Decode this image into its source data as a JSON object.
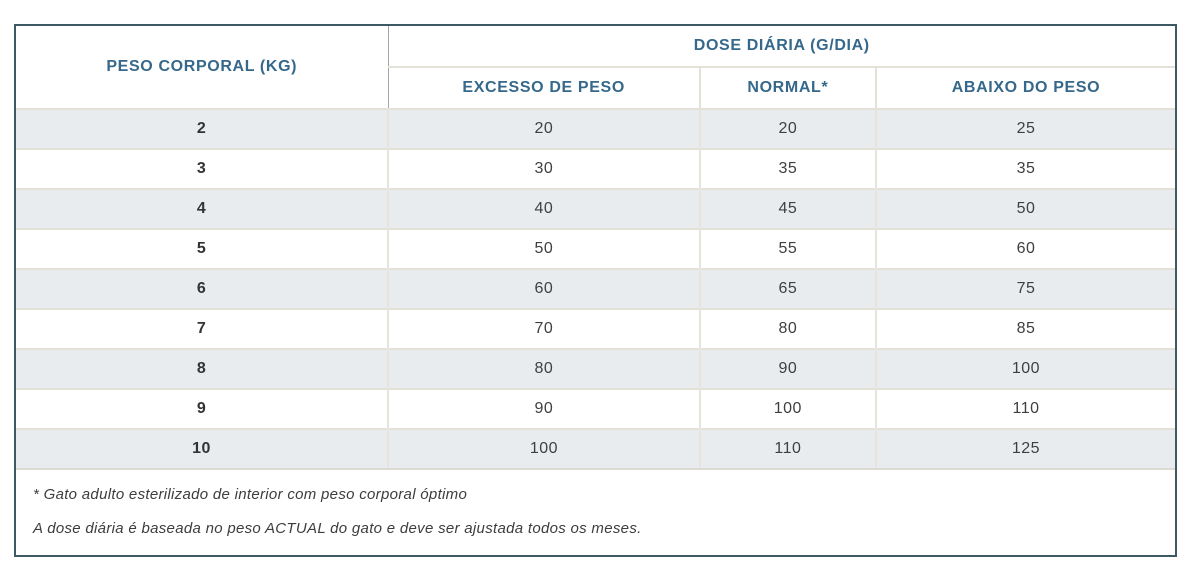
{
  "chart_data": {
    "type": "table",
    "header": {
      "row_header": "PESO CORPORAL (KG)",
      "group_header": "DOSE DIÁRIA (G/DIA)",
      "sub_headers": [
        "EXCESSO DE PESO",
        "NORMAL*",
        "ABAIXO DO PESO"
      ]
    },
    "rows": [
      [
        "2",
        "20",
        "20",
        "25"
      ],
      [
        "3",
        "30",
        "35",
        "35"
      ],
      [
        "4",
        "40",
        "45",
        "50"
      ],
      [
        "5",
        "50",
        "55",
        "60"
      ],
      [
        "6",
        "60",
        "65",
        "75"
      ],
      [
        "7",
        "70",
        "80",
        "85"
      ],
      [
        "8",
        "80",
        "90",
        "100"
      ],
      [
        "9",
        "90",
        "100",
        "110"
      ],
      [
        "10",
        "100",
        "110",
        "125"
      ]
    ],
    "footnotes": [
      "* Gato adulto esterilizado de interior com peso corporal óptimo",
      "A dose diária é baseada no peso ACTUAL do gato e deve ser ajustada todos os meses."
    ],
    "layout": {
      "striped_rows": "odd-gray",
      "legend_position": "none",
      "grid": "on"
    }
  },
  "colors": {
    "outer_border": "#3d5a64",
    "header_text": "#35688a",
    "alt_row_bg": "#e9ecef",
    "body_text": "#3f3f3f",
    "grid_line": "#e3e1d8",
    "header_col_divider": "#a6a6a6"
  }
}
